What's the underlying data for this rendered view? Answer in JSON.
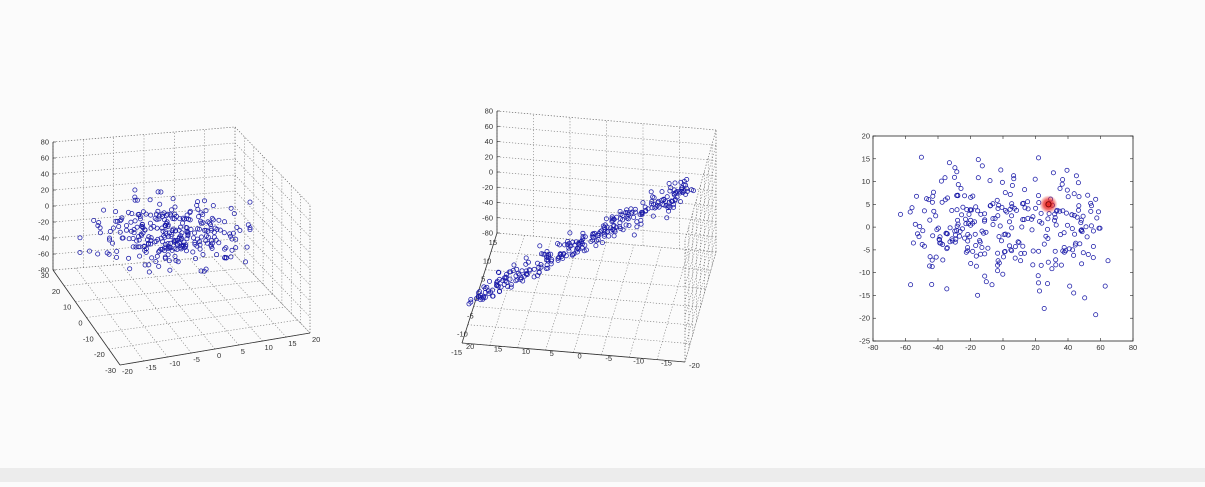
{
  "chart_data": [
    {
      "type": "scatter",
      "projection": "3d",
      "title": "",
      "marker": "circle",
      "marker_color": "#1a1aa8",
      "grid": true,
      "z_ticks": [
        "80",
        "60",
        "40",
        "20",
        "0",
        "-20",
        "-40",
        "-60",
        "-80"
      ],
      "x_ticks": [
        "-20",
        "-15",
        "-10",
        "-5",
        "0",
        "5",
        "10",
        "15",
        "20"
      ],
      "y_ticks": [
        "-30",
        "-20",
        "-10",
        "0",
        "10",
        "20",
        "30"
      ],
      "n_points": 300
    },
    {
      "type": "scatter",
      "projection": "3d",
      "title": "",
      "marker": "circle",
      "marker_color": "#1a1aa8",
      "grid": true,
      "z_ticks": [
        "80",
        "60",
        "40",
        "20",
        "0",
        "-20",
        "-40",
        "-60",
        "-80"
      ],
      "x_ticks": [
        "15",
        "10",
        "5",
        "0",
        "-5",
        "-10",
        "-15"
      ],
      "y_ticks": [
        "20",
        "15",
        "10",
        "5",
        "0",
        "-5",
        "-10",
        "-15",
        "-20"
      ],
      "n_points": 300
    },
    {
      "type": "scatter",
      "title": "",
      "marker": "circle",
      "marker_color": "#1a1aa8",
      "highlight_color": "#e8201c",
      "grid": false,
      "xlim": [
        -80,
        80
      ],
      "ylim": [
        -25,
        20
      ],
      "x_ticks": [
        "-80",
        "-60",
        "-40",
        "-20",
        "0",
        "20",
        "40",
        "60",
        "80"
      ],
      "y_ticks": [
        "20",
        "15",
        "10",
        "5",
        "0",
        "-5",
        "-10",
        "-15",
        "-20",
        "-25"
      ],
      "highlight_point": {
        "x": 28,
        "y": 5
      },
      "n_points": 300
    }
  ]
}
